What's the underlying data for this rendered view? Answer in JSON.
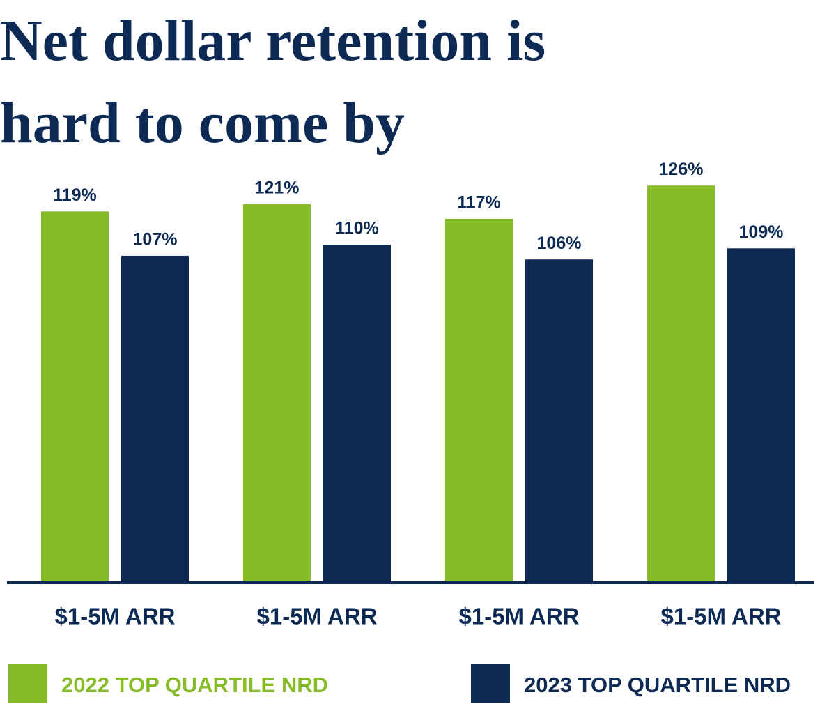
{
  "chart_data": {
    "type": "bar",
    "title": "Net dollar retention is hard to come by",
    "categories": [
      "$1-5M ARR",
      "$1-5M ARR",
      "$1-5M ARR",
      "$1-5M ARR"
    ],
    "series": [
      {
        "name": "2022 TOP QUARTILE NRD",
        "color": "#86bc25",
        "values": [
          119,
          121,
          117,
          126
        ],
        "value_labels": [
          "119%",
          "121%",
          "117%",
          "126%"
        ]
      },
      {
        "name": "2023 TOP QUARTILE NRD",
        "color": "#0d2a55",
        "values": [
          107,
          110,
          106,
          109
        ],
        "value_labels": [
          "107%",
          "110%",
          "106%",
          "109%"
        ]
      }
    ],
    "ylim": [
      18.5,
      130
    ],
    "legend": "bottom"
  }
}
